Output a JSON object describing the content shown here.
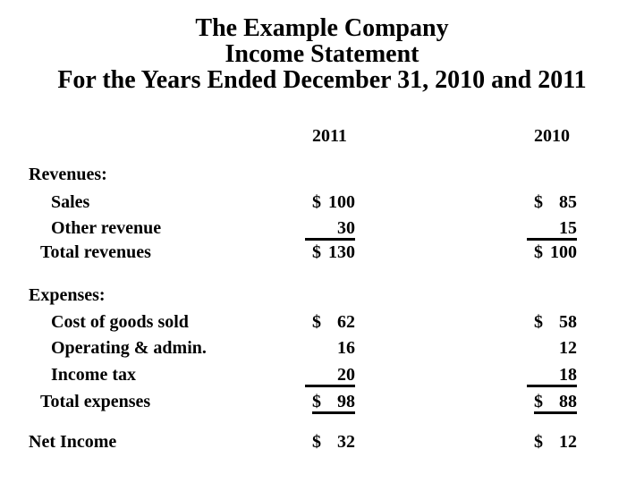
{
  "title": {
    "company": "The Example Company",
    "statement": "Income Statement",
    "period": "For the Years Ended December 31, 2010 and 2011"
  },
  "columns": {
    "col1": "2011",
    "col2": "2010"
  },
  "statement": {
    "revenues": {
      "header": "Revenues:",
      "sales": {
        "label": "Sales",
        "c2011": {
          "dollar": "$",
          "amount": "100"
        },
        "c2010": {
          "dollar": "$",
          "amount": "85"
        }
      },
      "other_revenue": {
        "label": "Other revenue",
        "c2011": {
          "dollar": "",
          "amount": "30"
        },
        "c2010": {
          "dollar": "",
          "amount": "15"
        }
      },
      "total": {
        "label": "Total revenues",
        "c2011": {
          "dollar": "$",
          "amount": "130"
        },
        "c2010": {
          "dollar": "$",
          "amount": "100"
        }
      }
    },
    "expenses": {
      "header": "Expenses:",
      "cost_of_goods_sold": {
        "label": "Cost of goods sold",
        "c2011": {
          "dollar": "$",
          "amount": "62"
        },
        "c2010": {
          "dollar": "$",
          "amount": "58"
        }
      },
      "operating_admin": {
        "label": "Operating & admin.",
        "c2011": {
          "dollar": "",
          "amount": "16"
        },
        "c2010": {
          "dollar": "",
          "amount": "12"
        }
      },
      "income_tax": {
        "label": "Income tax",
        "c2011": {
          "dollar": "",
          "amount": "20"
        },
        "c2010": {
          "dollar": "",
          "amount": "18"
        }
      },
      "total": {
        "label": "Total expenses",
        "c2011": {
          "dollar": "$",
          "amount": "98"
        },
        "c2010": {
          "dollar": "$",
          "amount": "88"
        }
      }
    },
    "net_income": {
      "label": "Net Income",
      "c2011": {
        "dollar": "$",
        "amount": "32"
      },
      "c2010": {
        "dollar": "$",
        "amount": "12"
      }
    }
  },
  "colors": {
    "text": "#000000",
    "background": "#ffffff"
  }
}
